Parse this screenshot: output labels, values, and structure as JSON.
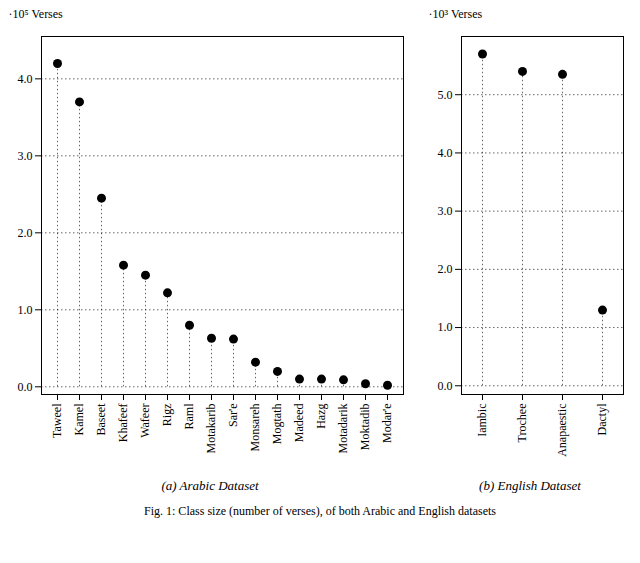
{
  "chart_data": [
    {
      "type": "lollipop",
      "title": "(a) Arabic Dataset",
      "ylabel": "·10⁵ Verses",
      "categories": [
        "Taweel",
        "Kamel",
        "Baseet",
        "Khafeef",
        "Wafeer",
        "Rigz",
        "Raml",
        "Motakarib",
        "Sar'e",
        "Monsareh",
        "Mogtath",
        "Madeed",
        "Hazg",
        "Motadarik",
        "Moktadib",
        "Modar'e"
      ],
      "values": [
        4.2,
        3.7,
        2.45,
        1.58,
        1.45,
        1.22,
        0.8,
        0.63,
        0.62,
        0.32,
        0.2,
        0.1,
        0.1,
        0.09,
        0.04,
        0.02
      ],
      "color": "black",
      "ylim": [
        -0.1,
        4.55
      ],
      "yticks": [
        0,
        1,
        2,
        3,
        4
      ],
      "grid": true
    },
    {
      "type": "lollipop",
      "title": "(b) English Dataset",
      "ylabel": "·10³ Verses",
      "categories": [
        "Iambic",
        "Trochee",
        "Anapaestic",
        "Dactyl"
      ],
      "values": [
        5.7,
        5.4,
        5.35,
        1.3
      ],
      "color": "black",
      "ylim": [
        -0.15,
        6.0
      ],
      "yticks": [
        0,
        1,
        2,
        3,
        4,
        5
      ],
      "grid": true
    }
  ],
  "caption": "Fig. 1: Class size (number of verses), of both Arabic and English datasets"
}
